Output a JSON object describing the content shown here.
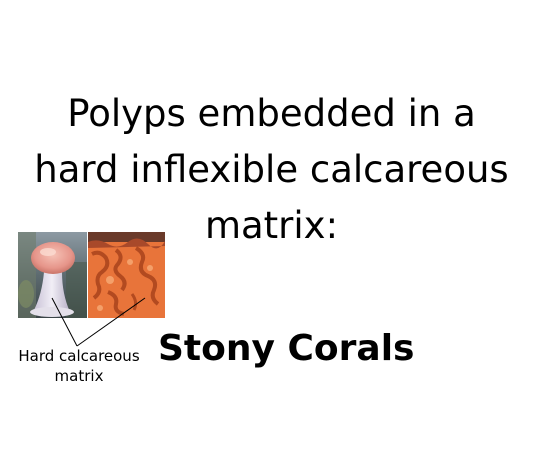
{
  "heading": {
    "lines": [
      "Polyps embedded in a",
      "hard inflexible calcareous",
      "matrix:"
    ]
  },
  "caption": {
    "lines": [
      "Hard calcareous",
      "matrix"
    ]
  },
  "title": "Stony Corals",
  "colors": {
    "text": "#000000",
    "background": "#ffffff",
    "coral_orange": "#e8743a",
    "polyp_pink": "#e8a9a0"
  }
}
